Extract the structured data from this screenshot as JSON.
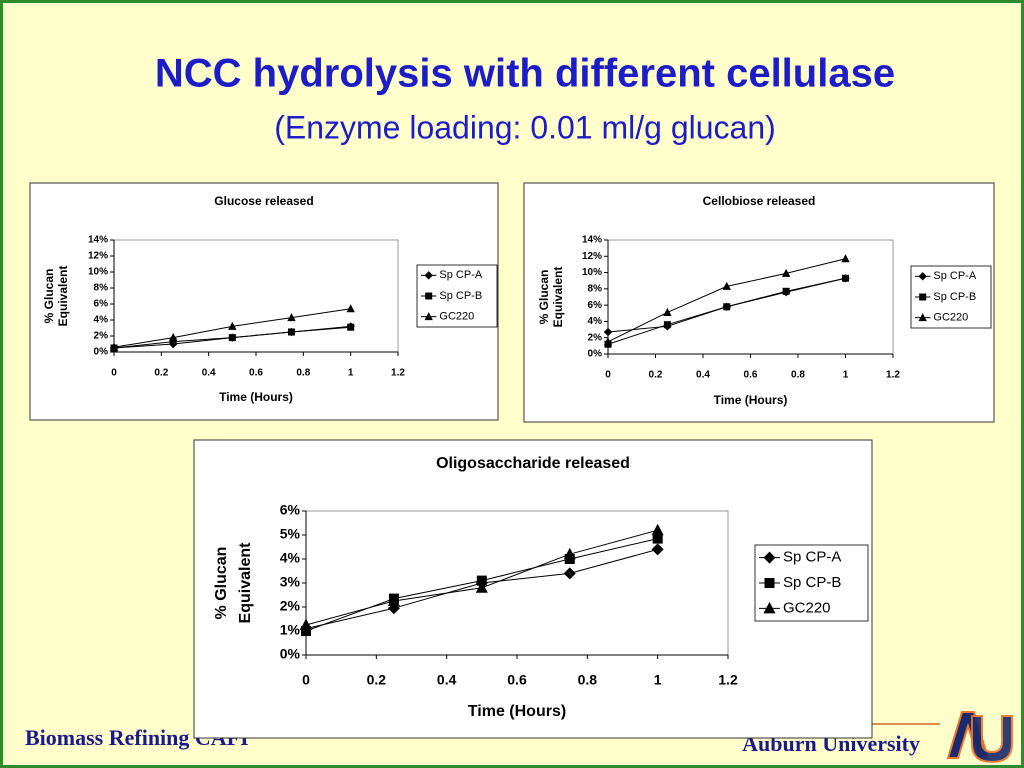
{
  "slide": {
    "title": "NCC hydrolysis with different cellulase",
    "subtitle": "(Enzyme loading: 0.01 ml/g glucan)",
    "footer_left": "Biomass Refining CAFI",
    "footer_right": "Auburn University"
  },
  "chart_data": [
    {
      "type": "line",
      "title": "Glucose released",
      "xlabel": "Time (Hours)",
      "ylabel": [
        "% Glucan",
        "Equivalent"
      ],
      "x": [
        0,
        0.25,
        0.5,
        0.75,
        1
      ],
      "xlim": [
        0,
        1.2
      ],
      "xticks": [
        0,
        0.2,
        0.4,
        0.6,
        0.8,
        1,
        1.2
      ],
      "ylim": [
        0,
        14
      ],
      "yticks": [
        {
          "value": 0,
          "label": "0%"
        },
        {
          "value": 2,
          "label": "2%"
        },
        {
          "value": 4,
          "label": "4%"
        },
        {
          "value": 6,
          "label": "6%"
        },
        {
          "value": 8,
          "label": "8%"
        },
        {
          "value": 10,
          "label": "10%"
        },
        {
          "value": 12,
          "label": "12%"
        },
        {
          "value": 14,
          "label": "14%"
        }
      ],
      "legend": "right",
      "series": [
        {
          "name": "Sp CP-A",
          "color": "#000000",
          "marker": "diamond",
          "values": [
            0.5,
            1.0,
            1.8,
            2.5,
            3.2
          ]
        },
        {
          "name": "Sp CP-B",
          "color": "#000000",
          "marker": "square",
          "values": [
            0.5,
            1.3,
            1.8,
            2.5,
            3.1
          ]
        },
        {
          "name": "GC220",
          "color": "#000000",
          "marker": "triangle",
          "values": [
            0.6,
            1.8,
            3.2,
            4.3,
            5.4
          ]
        }
      ]
    },
    {
      "type": "line",
      "title": "Cellobiose  released",
      "xlabel": "Time (Hours)",
      "ylabel": [
        "% Glucan",
        "Equivalent"
      ],
      "x": [
        0,
        0.25,
        0.5,
        0.75,
        1
      ],
      "xlim": [
        0,
        1.2
      ],
      "xticks": [
        0,
        0.2,
        0.4,
        0.6,
        0.8,
        1,
        1.2
      ],
      "ylim": [
        0,
        14
      ],
      "yticks": [
        {
          "value": 0,
          "label": "0%"
        },
        {
          "value": 2,
          "label": "2%"
        },
        {
          "value": 4,
          "label": "4%"
        },
        {
          "value": 6,
          "label": "6%"
        },
        {
          "value": 8,
          "label": "8%"
        },
        {
          "value": 10,
          "label": "10%"
        },
        {
          "value": 12,
          "label": "12%"
        },
        {
          "value": 14,
          "label": "14%"
        }
      ],
      "legend": "right",
      "series": [
        {
          "name": "Sp CP-A",
          "color": "#000000",
          "marker": "diamond",
          "values": [
            2.7,
            3.4,
            5.8,
            7.6,
            9.3
          ]
        },
        {
          "name": "Sp CP-B",
          "color": "#000000",
          "marker": "square",
          "values": [
            1.2,
            3.6,
            5.8,
            7.7,
            9.3
          ]
        },
        {
          "name": "GC220",
          "color": "#000000",
          "marker": "triangle",
          "values": [
            1.5,
            5.1,
            8.3,
            9.9,
            11.7
          ]
        }
      ]
    },
    {
      "type": "line",
      "title": "Oligosaccharide  released",
      "xlabel": "Time (Hours)",
      "ylabel": [
        "% Glucan",
        "Equivalent"
      ],
      "x": [
        0,
        0.25,
        0.5,
        0.75,
        1
      ],
      "xlim": [
        0,
        1.2
      ],
      "xticks": [
        0,
        0.2,
        0.4,
        0.6,
        0.8,
        1,
        1.2
      ],
      "ylim": [
        0,
        6
      ],
      "yticks": [
        {
          "value": 0,
          "label": "0%"
        },
        {
          "value": 1,
          "label": "1%"
        },
        {
          "value": 2,
          "label": "2%"
        },
        {
          "value": 3,
          "label": "3%"
        },
        {
          "value": 4,
          "label": "4%"
        },
        {
          "value": 5,
          "label": "5%"
        },
        {
          "value": 6,
          "label": "6%"
        }
      ],
      "legend": "right",
      "series": [
        {
          "name": "Sp CP-A",
          "color": "#000000",
          "marker": "diamond",
          "values": [
            1.1,
            1.95,
            3.0,
            3.4,
            4.4
          ]
        },
        {
          "name": "Sp CP-B",
          "color": "#000000",
          "marker": "square",
          "values": [
            1.0,
            2.35,
            3.1,
            4.0,
            4.85
          ]
        },
        {
          "name": "GC220",
          "color": "#000000",
          "marker": "triangle",
          "values": [
            1.25,
            2.25,
            2.8,
            4.2,
            5.2
          ]
        }
      ]
    }
  ]
}
